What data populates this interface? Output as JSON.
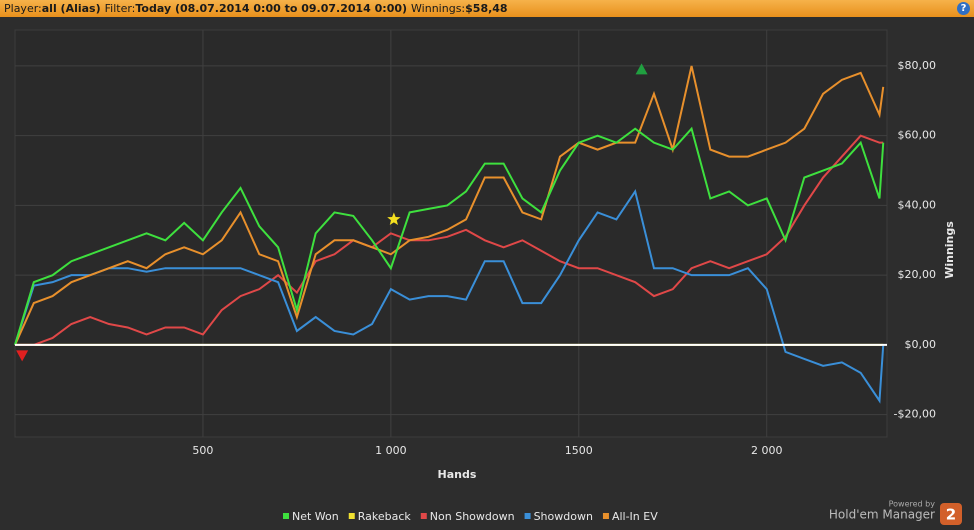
{
  "header": {
    "player_label": "Player:",
    "player": "all (Alias)",
    "filter_label": "Filter:",
    "filter": "Today (08.07.2014 0:00 to 09.07.2014 0:00)",
    "winnings_label": "Winnings:",
    "winnings": "$58,48",
    "help": "?"
  },
  "branding": {
    "powered": "Powered by",
    "product": "Hold'em Manager",
    "logo": "2"
  },
  "chart_data": {
    "type": "line",
    "xlabel": "Hands",
    "ylabel": "Winnings",
    "x": [
      0,
      50,
      100,
      150,
      200,
      250,
      300,
      350,
      400,
      450,
      500,
      550,
      600,
      650,
      700,
      750,
      800,
      850,
      900,
      950,
      1000,
      1050,
      1100,
      1150,
      1200,
      1250,
      1300,
      1350,
      1400,
      1450,
      1500,
      1550,
      1600,
      1650,
      1700,
      1750,
      1800,
      1850,
      1900,
      1950,
      2000,
      2050,
      2100,
      2150,
      2200,
      2250,
      2300,
      2310
    ],
    "series": [
      {
        "name": "Net Won",
        "color": "#3ee03e",
        "values": [
          0,
          18,
          20,
          24,
          26,
          28,
          30,
          32,
          30,
          35,
          30,
          38,
          45,
          34,
          28,
          10,
          32,
          38,
          37,
          30,
          22,
          38,
          39,
          40,
          44,
          52,
          52,
          42,
          38,
          50,
          58,
          60,
          58,
          62,
          58,
          56,
          62,
          42,
          44,
          40,
          42,
          30,
          48,
          50,
          52,
          58,
          42,
          58
        ]
      },
      {
        "name": "Rakeback",
        "color": "#f0e030",
        "values": [
          0,
          0,
          0,
          0,
          0,
          0,
          0,
          0,
          0,
          0,
          0,
          0,
          0,
          0,
          0,
          0,
          0,
          0,
          0,
          0,
          0,
          0,
          0,
          0,
          0,
          0,
          0,
          0,
          0,
          0,
          0,
          0,
          0,
          0,
          0,
          0,
          0,
          0,
          0,
          0,
          0,
          0,
          0,
          0,
          0,
          0,
          0,
          0
        ]
      },
      {
        "name": "Non Showdown",
        "color": "#e04848",
        "values": [
          0,
          0,
          2,
          6,
          8,
          6,
          5,
          3,
          5,
          5,
          3,
          10,
          14,
          16,
          20,
          15,
          24,
          26,
          30,
          28,
          32,
          30,
          30,
          31,
          33,
          30,
          28,
          30,
          27,
          24,
          22,
          22,
          20,
          18,
          14,
          16,
          22,
          24,
          22,
          24,
          26,
          31,
          40,
          48,
          54,
          60,
          58,
          58
        ]
      },
      {
        "name": "Showdown",
        "color": "#3a8fd8",
        "values": [
          0,
          17,
          18,
          20,
          20,
          22,
          22,
          21,
          22,
          22,
          22,
          22,
          22,
          20,
          18,
          4,
          8,
          4,
          3,
          6,
          16,
          13,
          14,
          14,
          13,
          24,
          24,
          12,
          12,
          20,
          30,
          38,
          36,
          44,
          22,
          22,
          20,
          20,
          20,
          22,
          16,
          -2,
          -4,
          -6,
          -5,
          -8,
          -16,
          0
        ]
      },
      {
        "name": "All-In EV",
        "color": "#e8902c",
        "values": [
          0,
          12,
          14,
          18,
          20,
          22,
          24,
          22,
          26,
          28,
          26,
          30,
          38,
          26,
          24,
          8,
          26,
          30,
          30,
          28,
          26,
          30,
          31,
          33,
          36,
          48,
          48,
          38,
          36,
          54,
          58,
          56,
          58,
          58,
          72,
          56,
          80,
          56,
          54,
          54,
          56,
          58,
          62,
          72,
          76,
          78,
          66,
          74
        ]
      }
    ],
    "markers": [
      {
        "shape": "triangle-down",
        "color": "#e02020",
        "x": 19,
        "y": -3
      },
      {
        "shape": "star",
        "color": "#f5e020",
        "x": 1008,
        "y": 36
      },
      {
        "shape": "triangle-up",
        "color": "#20a040",
        "x": 1667,
        "y": 79
      }
    ],
    "xlim": [
      0,
      2320
    ],
    "ylim": [
      -26.4,
      90.3
    ],
    "xticks": [
      500,
      {
        "value": 1000,
        "label": "1 000"
      },
      1500,
      {
        "value": 2000,
        "label": "2 000"
      }
    ],
    "yticks": [
      {
        "value": -20,
        "label": "-$20,00"
      },
      {
        "value": 0,
        "label": "$0,00"
      },
      {
        "value": 20,
        "label": "$20,00"
      },
      {
        "value": 40,
        "label": "$40,00"
      },
      {
        "value": 60,
        "label": "$60,00"
      },
      {
        "value": 80,
        "label": "$80,00"
      }
    ],
    "grid": true
  }
}
